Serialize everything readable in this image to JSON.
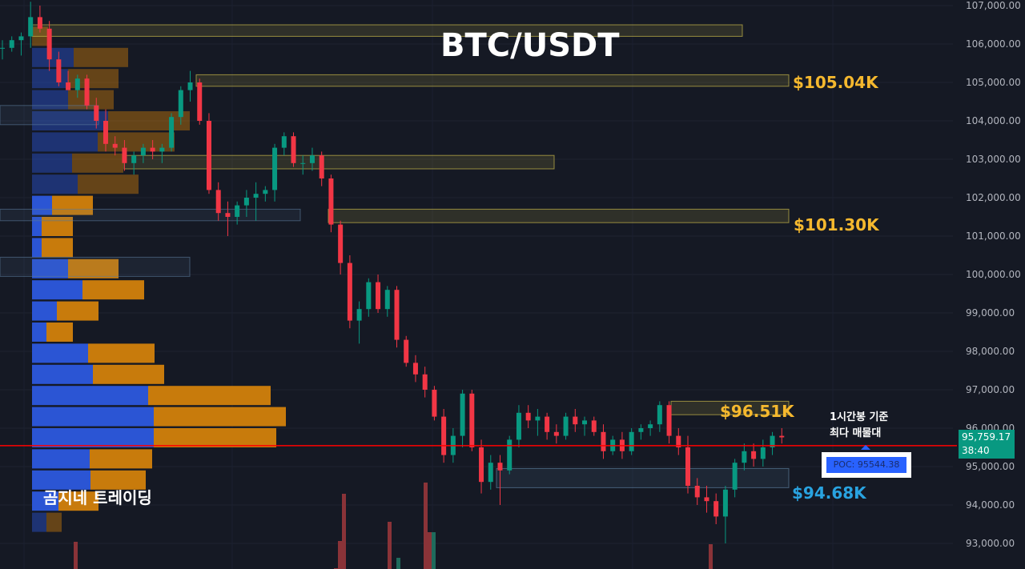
{
  "chart_data": {
    "type": "candlestick",
    "title": "BTC/USDT",
    "y_ticks": [
      "107,000.00",
      "106,000.00",
      "105,000.00",
      "104,000.00",
      "103,000.00",
      "102,000.00",
      "101,000.00",
      "100,000.00",
      "99,000.00",
      "98,000.00",
      "97,000.00",
      "96,000.00",
      "95,000.00",
      "94,000.00",
      "93,000.00"
    ],
    "ylim": [
      92.4,
      107.15
    ],
    "grid": true,
    "candles_unit": "thousand USDT, [open, high, low, close]",
    "candles": [
      [
        105.9,
        106.1,
        105.6,
        105.9
      ],
      [
        105.9,
        106.2,
        105.8,
        106.1
      ],
      [
        106.1,
        106.3,
        105.7,
        106.2
      ],
      [
        106.2,
        107.1,
        105.9,
        106.7
      ],
      [
        106.7,
        107.0,
        106.3,
        106.4
      ],
      [
        106.4,
        106.6,
        105.3,
        105.6
      ],
      [
        105.6,
        105.8,
        104.9,
        105.0
      ],
      [
        105.0,
        105.3,
        104.8,
        104.8
      ],
      [
        104.8,
        105.2,
        104.6,
        105.1
      ],
      [
        105.1,
        105.2,
        104.3,
        104.4
      ],
      [
        104.4,
        104.6,
        103.8,
        104.0
      ],
      [
        104.0,
        104.3,
        103.2,
        103.4
      ],
      [
        103.4,
        103.6,
        103.1,
        103.3
      ],
      [
        103.3,
        103.5,
        102.7,
        102.9
      ],
      [
        102.9,
        103.2,
        102.6,
        103.1
      ],
      [
        103.1,
        103.4,
        102.9,
        103.3
      ],
      [
        103.3,
        103.5,
        103.0,
        103.2
      ],
      [
        103.2,
        103.4,
        102.9,
        103.3
      ],
      [
        103.3,
        104.2,
        103.2,
        104.1
      ],
      [
        104.1,
        104.9,
        103.9,
        104.8
      ],
      [
        104.8,
        105.3,
        104.5,
        105.0
      ],
      [
        105.0,
        105.1,
        103.9,
        104.0
      ],
      [
        104.0,
        104.2,
        102.1,
        102.2
      ],
      [
        102.2,
        102.4,
        101.4,
        101.6
      ],
      [
        101.6,
        101.9,
        101.0,
        101.5
      ],
      [
        101.5,
        101.9,
        101.3,
        101.8
      ],
      [
        101.8,
        102.2,
        101.5,
        102.0
      ],
      [
        102.0,
        102.4,
        101.4,
        102.1
      ],
      [
        102.1,
        102.3,
        101.9,
        102.2
      ],
      [
        102.2,
        103.4,
        101.9,
        103.3
      ],
      [
        103.3,
        103.7,
        103.1,
        103.6
      ],
      [
        103.6,
        103.7,
        102.8,
        102.9
      ],
      [
        102.9,
        103.1,
        102.6,
        102.9
      ],
      [
        102.9,
        103.3,
        102.7,
        103.1
      ],
      [
        103.1,
        103.2,
        102.3,
        102.5
      ],
      [
        102.5,
        102.6,
        101.1,
        101.3
      ],
      [
        101.3,
        101.4,
        100.0,
        100.3
      ],
      [
        100.3,
        100.5,
        98.6,
        98.8
      ],
      [
        98.8,
        99.3,
        98.2,
        99.1
      ],
      [
        99.1,
        99.9,
        98.9,
        99.8
      ],
      [
        99.8,
        100.0,
        99.0,
        99.1
      ],
      [
        99.1,
        99.7,
        98.9,
        99.6
      ],
      [
        99.6,
        99.7,
        98.1,
        98.3
      ],
      [
        98.3,
        98.4,
        97.6,
        97.7
      ],
      [
        97.7,
        97.9,
        97.2,
        97.4
      ],
      [
        97.4,
        97.6,
        96.8,
        97.0
      ],
      [
        97.0,
        97.1,
        96.2,
        96.3
      ],
      [
        96.3,
        96.5,
        95.1,
        95.3
      ],
      [
        95.3,
        96.0,
        95.1,
        95.8
      ],
      [
        95.8,
        97.0,
        95.5,
        96.9
      ],
      [
        96.9,
        97.0,
        95.4,
        95.5
      ],
      [
        95.5,
        95.7,
        94.3,
        94.6
      ],
      [
        94.6,
        95.3,
        94.4,
        95.1
      ],
      [
        95.1,
        95.3,
        94.0,
        94.9
      ],
      [
        94.9,
        95.8,
        94.8,
        95.7
      ],
      [
        95.7,
        96.6,
        95.5,
        96.4
      ],
      [
        96.4,
        96.6,
        96.0,
        96.2
      ],
      [
        96.2,
        96.5,
        95.8,
        96.3
      ],
      [
        96.3,
        96.4,
        95.7,
        95.9
      ],
      [
        95.9,
        96.1,
        95.6,
        95.8
      ],
      [
        95.8,
        96.4,
        95.7,
        96.3
      ],
      [
        96.3,
        96.5,
        95.9,
        96.1
      ],
      [
        96.1,
        96.3,
        95.8,
        96.2
      ],
      [
        96.2,
        96.3,
        95.8,
        95.9
      ],
      [
        95.9,
        96.1,
        95.2,
        95.4
      ],
      [
        95.4,
        95.8,
        95.3,
        95.7
      ],
      [
        95.7,
        95.9,
        95.2,
        95.4
      ],
      [
        95.4,
        96.0,
        95.3,
        95.9
      ],
      [
        95.9,
        96.1,
        95.7,
        96.0
      ],
      [
        96.0,
        96.2,
        95.8,
        96.1
      ],
      [
        96.1,
        96.7,
        95.9,
        96.6
      ],
      [
        96.6,
        96.7,
        95.6,
        95.8
      ],
      [
        95.8,
        96.0,
        95.3,
        95.5
      ],
      [
        95.5,
        95.8,
        94.3,
        94.5
      ],
      [
        94.5,
        94.7,
        94.0,
        94.2
      ],
      [
        94.2,
        94.5,
        93.8,
        94.1
      ],
      [
        94.1,
        94.3,
        93.5,
        93.7
      ],
      [
        93.7,
        94.5,
        93.0,
        94.4
      ],
      [
        94.4,
        95.2,
        94.2,
        95.1
      ],
      [
        95.1,
        95.6,
        94.9,
        95.4
      ],
      [
        95.4,
        95.6,
        95.0,
        95.2
      ],
      [
        95.2,
        95.7,
        95.0,
        95.5
      ],
      [
        95.5,
        95.9,
        95.3,
        95.8
      ],
      [
        95.8,
        96.0,
        95.6,
        95.76
      ]
    ],
    "volume_profile": {
      "levels": [
        106.2,
        105.65,
        105.1,
        104.55,
        104.0,
        103.45,
        102.9,
        102.35,
        101.8,
        101.25,
        100.7,
        100.15,
        99.6,
        99.05,
        98.5,
        97.95,
        97.4,
        96.85,
        96.3,
        95.75,
        95.2,
        94.65,
        94.1,
        93.55
      ],
      "buy": [
        0,
        52,
        45,
        45,
        95,
        82,
        50,
        57,
        25,
        12,
        12,
        45,
        63,
        31,
        18,
        70,
        76,
        145,
        152,
        152,
        72,
        73,
        33,
        18
      ],
      "sell": [
        20,
        68,
        63,
        57,
        102,
        96,
        64,
        76,
        51,
        39,
        39,
        63,
        77,
        52,
        33,
        83,
        89,
        153,
        165,
        153,
        78,
        69,
        50,
        19
      ],
      "colors": {
        "buy": "#2b55d4",
        "sell": "#c87b0c"
      }
    },
    "zones": [
      {
        "label": "",
        "top": 106.5,
        "bottom": 106.2,
        "color": "#c8b84a"
      },
      {
        "label": "$105.04K",
        "top": 105.2,
        "bottom": 104.9,
        "color": "#c8b84a"
      },
      {
        "label": "",
        "top": 103.1,
        "bottom": 102.75,
        "color": "#c8b84a"
      },
      {
        "label": "$101.30K",
        "top": 101.7,
        "bottom": 101.35,
        "color": "#c8b84a"
      },
      {
        "label": "$96.51K",
        "top": 96.7,
        "bottom": 96.35,
        "color": "#c8b84a"
      },
      {
        "label": "$94.68K",
        "top": 94.95,
        "bottom": 94.45,
        "color": "#5a7a9a"
      }
    ],
    "poc_line": 95.54438,
    "last_price": "95,759.17",
    "countdown": "38:40"
  },
  "annotations": {
    "level_105": "$105.04K",
    "level_101": "$101.30K",
    "level_96": "$96.51K",
    "level_94": "$94.68K",
    "note_line1": "1시간봉 기준",
    "note_line2": "최다 매물대",
    "poc_label": "POC: 95544.38",
    "brand": "곰지네 트레이딩"
  },
  "colors": {
    "up": "#089981",
    "down": "#f23645",
    "background": "#151924",
    "poc_line": "#ff0000",
    "gold": "#f5b82e",
    "cyan": "#29a3e0"
  }
}
